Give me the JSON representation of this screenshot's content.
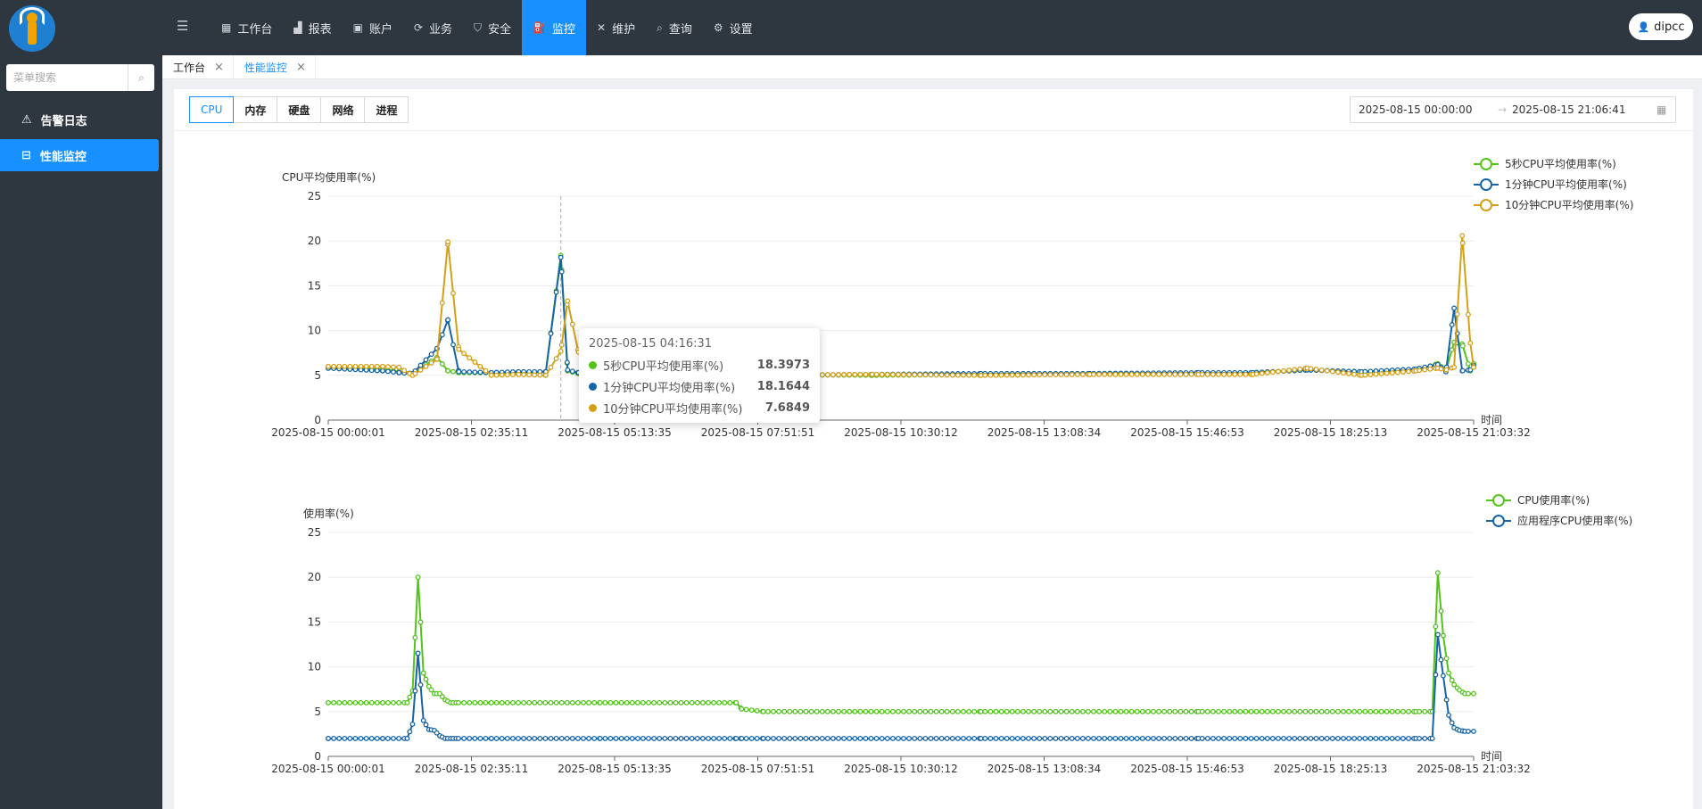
{
  "header": {
    "nav": [
      {
        "label": "工作台",
        "icon": "grid-icon"
      },
      {
        "label": "报表",
        "icon": "bar-chart-icon"
      },
      {
        "label": "账户",
        "icon": "account-icon"
      },
      {
        "label": "业务",
        "icon": "sync-icon"
      },
      {
        "label": "安全",
        "icon": "shield-icon"
      },
      {
        "label": "监控",
        "icon": "monitor-icon"
      },
      {
        "label": "维护",
        "icon": "tools-icon"
      },
      {
        "label": "查询",
        "icon": "search-icon"
      },
      {
        "label": "设置",
        "icon": "gear-icon"
      }
    ],
    "active_index": 5,
    "user": "dipcc"
  },
  "sidebar": {
    "search_placeholder": "菜单搜索",
    "items": [
      {
        "label": "告警日志",
        "icon": "warning-icon"
      },
      {
        "label": "性能监控",
        "icon": "monitor-icon"
      }
    ],
    "active_index": 1
  },
  "tabs": [
    {
      "label": "工作台"
    },
    {
      "label": "性能监控"
    }
  ],
  "subtabs": [
    "CPU",
    "内存",
    "硬盘",
    "网络",
    "进程"
  ],
  "subtab_active": 0,
  "date_range": {
    "start": "2025-08-15 00:00:00",
    "end": "2025-08-15 21:06:41"
  },
  "tooltip": {
    "time": "2025-08-15 04:16:31",
    "rows": [
      {
        "name": "5秒CPU平均使用率(%)",
        "value": "18.3973",
        "color": "#52c41a"
      },
      {
        "name": "1分钟CPU平均使用率(%)",
        "value": "18.1644",
        "color": "#1565a8"
      },
      {
        "name": "10分钟CPU平均使用率(%)",
        "value": "7.6849",
        "color": "#d4a017"
      }
    ]
  },
  "chart_data": [
    {
      "type": "line",
      "ylabel": "CPU平均使用率(%)",
      "xlabel": "时间",
      "ylim": [
        0,
        25
      ],
      "yticks": [
        0,
        5,
        10,
        15,
        20,
        25
      ],
      "xticks": [
        "2025-08-15 00:00:01",
        "2025-08-15 02:35:11",
        "2025-08-15 05:13:35",
        "2025-08-15 07:51:51",
        "2025-08-15 10:30:12",
        "2025-08-15 13:08:34",
        "2025-08-15 15:46:53",
        "2025-08-15 18:25:13",
        "2025-08-15 21:03:32"
      ],
      "legend_position": "top-right",
      "x_hours": [
        0,
        1,
        1.3,
        1.55,
        2.0,
        2.2,
        2.4,
        3.0,
        3.5,
        4.0,
        4.2761,
        4.4,
        4.6,
        5.0,
        6.0,
        8.0,
        10,
        12,
        14,
        16,
        17,
        18,
        19,
        20,
        20.4,
        20.55,
        20.7,
        20.85,
        21.0,
        21.06
      ],
      "series": [
        {
          "name": "5秒CPU平均使用率(%)",
          "color": "#52c41a",
          "values": [
            5.9,
            5.7,
            5.4,
            5.2,
            7.0,
            5.5,
            5.3,
            5.3,
            5.3,
            5.4,
            18.3973,
            5.5,
            5.2,
            5.2,
            5.1,
            5.1,
            5.0,
            5.1,
            5.2,
            5.2,
            5.3,
            5.6,
            5.4,
            5.6,
            6.3,
            5.5,
            8.7,
            8.5,
            5.5,
            6.3
          ]
        },
        {
          "name": "1分钟CPU平均使用率(%)",
          "color": "#1565a8",
          "values": [
            5.8,
            5.5,
            5.3,
            5.2,
            8.0,
            11.2,
            5.4,
            5.3,
            5.4,
            5.4,
            18.1644,
            5.6,
            5.3,
            5.2,
            5.0,
            5.0,
            5.1,
            5.2,
            5.2,
            5.3,
            5.3,
            5.6,
            5.4,
            5.7,
            6.2,
            5.4,
            12.5,
            5.5,
            5.6,
            6.1
          ]
        },
        {
          "name": "10分钟CPU平均使用率(%)",
          "color": "#d4a017",
          "values": [
            6.0,
            6.0,
            5.9,
            5.0,
            6.8,
            19.9,
            7.9,
            5.0,
            5.1,
            5.0,
            7.6849,
            13.3,
            7.6,
            5.5,
            5.2,
            5.0,
            5.1,
            5.0,
            5.1,
            5.1,
            5.1,
            5.8,
            5.0,
            5.5,
            5.8,
            5.6,
            5.9,
            20.6,
            8.6,
            5.9
          ]
        }
      ]
    },
    {
      "type": "line",
      "ylabel": "使用率(%)",
      "xlabel": "时间",
      "ylim": [
        0,
        25
      ],
      "yticks": [
        0,
        5,
        10,
        15,
        20,
        25
      ],
      "xticks": [
        "2025-08-15 00:00:01",
        "2025-08-15 02:35:11",
        "2025-08-15 05:13:35",
        "2025-08-15 07:51:51",
        "2025-08-15 10:30:12",
        "2025-08-15 13:08:34",
        "2025-08-15 15:46:53",
        "2025-08-15 18:25:13",
        "2025-08-15 21:03:32"
      ],
      "legend_position": "top-right",
      "x_hours": [
        0,
        1.0,
        1.45,
        1.55,
        1.65,
        1.75,
        1.85,
        1.95,
        2.05,
        2.15,
        2.25,
        2.35,
        3.0,
        5.0,
        7.5,
        7.6,
        8.0,
        12,
        16,
        20,
        20.3,
        20.4,
        20.5,
        20.6,
        20.7,
        20.8,
        20.9
      ],
      "series": [
        {
          "name": "CPU使用率(%)",
          "color": "#52c41a",
          "values": [
            6.0,
            6.0,
            6.0,
            7.3,
            20.0,
            9.3,
            7.8,
            7.0,
            7.0,
            6.3,
            6.0,
            6.0,
            6.0,
            6.0,
            6.0,
            5.3,
            5.0,
            5.0,
            5.0,
            5.0,
            5.0,
            20.5,
            13.5,
            9.3,
            8.0,
            7.4,
            7.0
          ]
        },
        {
          "name": "应用程序CPU使用率(%)",
          "color": "#1565a8",
          "values": [
            2.0,
            2.0,
            2.0,
            3.6,
            11.5,
            4.0,
            3.0,
            2.9,
            2.3,
            2.0,
            2.0,
            2.0,
            2.0,
            2.0,
            2.0,
            2.0,
            2.0,
            2.0,
            2.0,
            2.0,
            2.0,
            13.6,
            9.0,
            4.6,
            3.2,
            2.9,
            2.8
          ]
        }
      ]
    }
  ]
}
